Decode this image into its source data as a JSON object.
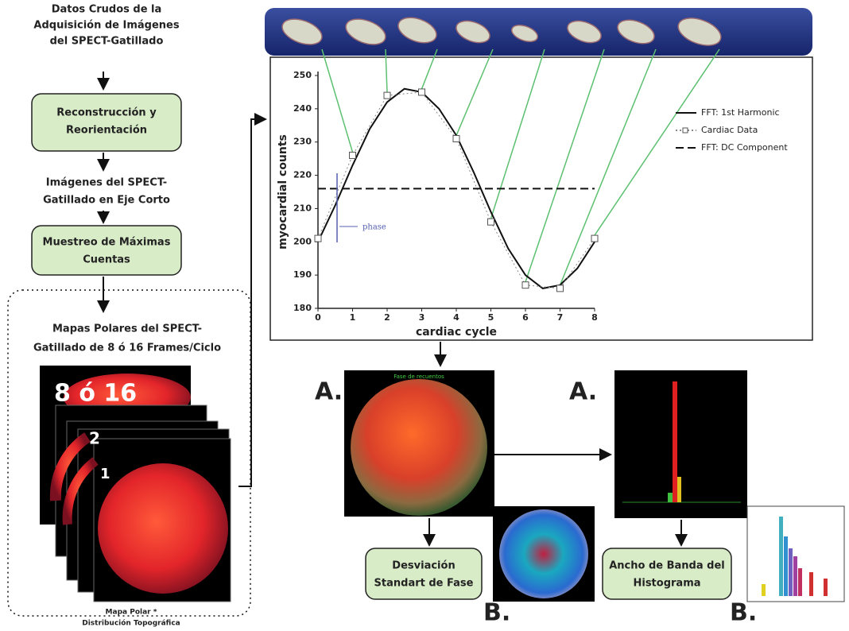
{
  "flow": {
    "input": [
      "Datos Crudos de la",
      "Adquisición de Imágenes",
      "del SPECT-Gatillado"
    ],
    "box1": [
      "Reconstrucción y",
      "Reorientación"
    ],
    "mid": [
      "Imágenes del SPECT-",
      "Gatillado en Eje Corto"
    ],
    "box2": [
      "Muestreo de Máximas",
      "Cuentas"
    ],
    "maps": [
      "Mapas Polares del SPECT-",
      "Gatillado de 8 ó 16 Frames/Ciclo"
    ],
    "stack_labels": [
      "8 ó 16",
      "2",
      "1"
    ],
    "caption": [
      "Mapa Polar *",
      "Distribución Topográfica"
    ]
  },
  "chart_data": {
    "type": "line",
    "x_label": "cardiac cycle",
    "y_label": "myocardial counts",
    "xlim": [
      0,
      8
    ],
    "ylim": [
      180,
      250
    ],
    "xticks": [
      0,
      1,
      2,
      3,
      4,
      5,
      6,
      7,
      8
    ],
    "yticks": [
      180,
      190,
      200,
      210,
      220,
      230,
      240,
      250
    ],
    "annotation": "phase",
    "series": [
      {
        "name": "FFT:  1st Harmonic",
        "color": "#111111",
        "style": "solid",
        "x": [
          0,
          0.5,
          1,
          1.5,
          2,
          2.5,
          3,
          3.5,
          4,
          4.5,
          5,
          5.5,
          6,
          6.5,
          7,
          7.5,
          8
        ],
        "values": [
          200,
          211,
          223,
          234,
          242,
          246,
          245,
          240,
          232,
          221,
          209,
          198,
          190,
          186,
          187,
          192,
          200
        ]
      },
      {
        "name": "Cardiac Data",
        "color": "#888888",
        "style": "dotted",
        "marker": "square",
        "x": [
          0,
          1,
          2,
          3,
          4,
          5,
          6,
          7,
          8
        ],
        "values": [
          201,
          226,
          244,
          245,
          231,
          206,
          187,
          186,
          201
        ]
      },
      {
        "name": "FFT:  DC Component",
        "color": "#111111",
        "style": "dashed",
        "x": [
          0,
          8
        ],
        "values": [
          216,
          216
        ]
      }
    ]
  },
  "outputs": {
    "map_title": "Fase de recuentos",
    "phase_a": "A.",
    "phase_box": [
      "Desviación",
      "Standart de Fase"
    ],
    "phase_b": "B.",
    "hist_a": "A.",
    "hist_box": [
      "Ancho de Banda del",
      "Histograma"
    ],
    "hist_b": "B."
  }
}
